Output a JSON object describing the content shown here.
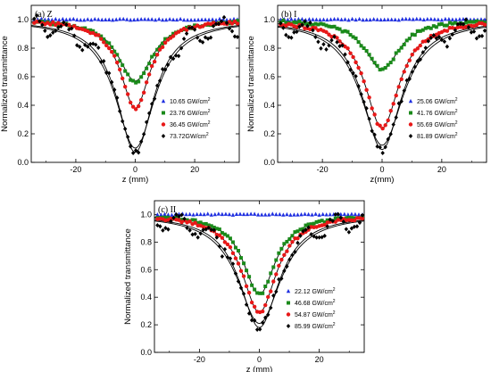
{
  "figure": {
    "description_free": true
  },
  "chart_data": [
    {
      "type": "scatter",
      "panel_label": "(a) Z",
      "xlabel": "z (mm)",
      "ylabel": "Normalized transmittance",
      "xlim": [
        -35,
        35
      ],
      "ylim": [
        0.0,
        1.1
      ],
      "xticks": [
        -20,
        0,
        20
      ],
      "yticks": [
        0.0,
        0.2,
        0.4,
        0.6,
        0.8,
        1.0
      ],
      "xtick_labels": [
        "-20",
        "0",
        "20"
      ],
      "ytick_labels": [
        "0.0",
        "0.2",
        "0.4",
        "0.6",
        "0.8",
        "1.0"
      ],
      "legend_position": "bottom-right",
      "series": [
        {
          "name": "10.65 GW/cm²",
          "unit_base": "10.65 GW/cm",
          "unit_sup": "2",
          "color": "#1f2fe0",
          "marker": "triangle",
          "dip": 0.0,
          "width": 6,
          "fit_min": 1.0
        },
        {
          "name": "23.76 GW/cm²",
          "unit_base": "23.76 GW/cm",
          "unit_sup": "2",
          "color": "#1a8a1a",
          "marker": "square",
          "dip": 0.44,
          "width": 7,
          "fit_min": 0.57
        },
        {
          "name": "36.45 GW/cm²",
          "unit_base": "36.45 GW/cm",
          "unit_sup": "2",
          "color": "#e81818",
          "marker": "circle",
          "dip": 0.62,
          "width": 6,
          "fit_min": 0.38
        },
        {
          "name": "73.72 GW/cm²",
          "unit_base": "73.72GW/cm",
          "unit_sup": "2",
          "color": "#000000",
          "marker": "diamond",
          "dip": 0.93,
          "width": 7.5,
          "fit_min": 0.07
        }
      ]
    },
    {
      "type": "scatter",
      "panel_label": "(b) I",
      "xlabel": "z(mm)",
      "ylabel": "Normalized transmittance",
      "xlim": [
        -35,
        35
      ],
      "ylim": [
        0.0,
        1.1
      ],
      "xticks": [
        -20,
        0,
        20
      ],
      "yticks": [
        0.0,
        0.2,
        0.4,
        0.6,
        0.8,
        1.0
      ],
      "xtick_labels": [
        "-20",
        "0",
        "20"
      ],
      "ytick_labels": [
        "0.0",
        "0.2",
        "0.4",
        "0.6",
        "0.8",
        "1.0"
      ],
      "legend_position": "bottom-right",
      "series": [
        {
          "name": "25.06 GW/cm²",
          "unit_base": "25.06 GW/cm",
          "unit_sup": "2",
          "color": "#1f2fe0",
          "marker": "triangle",
          "dip": 0.0,
          "width": 6,
          "fit_min": 1.0
        },
        {
          "name": "41.76 GW/cm²",
          "unit_base": "41.76 GW/cm",
          "unit_sup": "2",
          "color": "#1a8a1a",
          "marker": "square",
          "dip": 0.35,
          "width": 7,
          "fit_min": 0.65
        },
        {
          "name": "55.69 GW/cm²",
          "unit_base": "55.69 GW/cm",
          "unit_sup": "2",
          "color": "#e81818",
          "marker": "circle",
          "dip": 0.76,
          "width": 7,
          "fit_min": 0.24
        },
        {
          "name": "81.89 GW/cm²",
          "unit_base": "81.89 GW/cm",
          "unit_sup": "2",
          "color": "#000000",
          "marker": "diamond",
          "dip": 0.91,
          "width": 8,
          "fit_min": 0.09
        }
      ]
    },
    {
      "type": "scatter",
      "panel_label": "(c) II",
      "xlabel": "z (mm)",
      "ylabel": "Normalized transmittance",
      "xlim": [
        -35,
        35
      ],
      "ylim": [
        0.0,
        1.1
      ],
      "xticks": [
        -20,
        0,
        20
      ],
      "yticks": [
        0.0,
        0.2,
        0.4,
        0.6,
        0.8,
        1.0
      ],
      "xtick_labels": [
        "-20",
        "0",
        "20"
      ],
      "ytick_labels": [
        "0.0",
        "0.2",
        "0.4",
        "0.6",
        "0.8",
        "1.0"
      ],
      "legend_position": "bottom-right",
      "series": [
        {
          "name": "22.12 GW/cm²",
          "unit_base": "22.12 GW/cm",
          "unit_sup": "2",
          "color": "#1f2fe0",
          "marker": "triangle",
          "dip": 0.0,
          "width": 6,
          "fit_min": 1.0
        },
        {
          "name": "46.68 GW/cm²",
          "unit_base": "46.68 GW/cm",
          "unit_sup": "2",
          "color": "#1a8a1a",
          "marker": "square",
          "dip": 0.58,
          "width": 6.5,
          "fit_min": 0.42
        },
        {
          "name": "54.87 GW/cm²",
          "unit_base": "54.87 GW/cm",
          "unit_sup": "2",
          "color": "#e81818",
          "marker": "circle",
          "dip": 0.71,
          "width": 7,
          "fit_min": 0.29
        },
        {
          "name": "85.99 GW/cm²",
          "unit_base": "85.99 GW/cm",
          "unit_sup": "2",
          "color": "#000000",
          "marker": "diamond",
          "dip": 0.82,
          "width": 8,
          "fit_min": 0.18
        }
      ]
    }
  ]
}
